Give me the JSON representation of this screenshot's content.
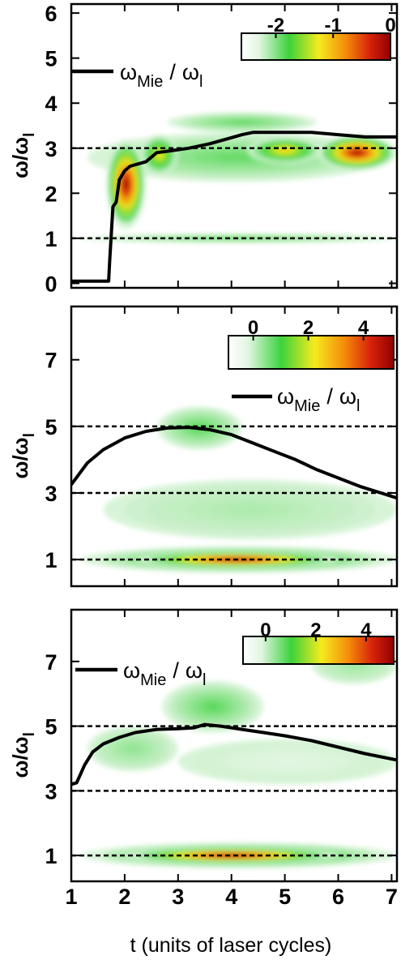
{
  "chart_data": [
    {
      "type": "heatmap",
      "ylabel": "ω/ω_l",
      "xlim": [
        1,
        7.1
      ],
      "ylim": [
        -0.1,
        6.2
      ],
      "ticks": {
        "y": [
          0,
          1,
          2,
          3,
          4,
          5,
          6
        ]
      },
      "colorbar": {
        "ticks": [
          -2,
          -1,
          0
        ],
        "range": [
          -2.6,
          0
        ]
      },
      "dashed_lines": [
        1,
        3
      ],
      "legend": {
        "label_main": "ω",
        "label_sub1": "Mie",
        "label_slash": "/",
        "label_main2": "ω",
        "label_sub2": "l",
        "placement": "top-left"
      },
      "series": [
        {
          "name": "ω_Mie / ω_l",
          "x": [
            1.0,
            1.7,
            1.72,
            1.78,
            1.84,
            1.9,
            2.0,
            2.1,
            2.4,
            2.6,
            2.9,
            3.2,
            3.6,
            3.9,
            4.2,
            4.4,
            5.0,
            5.5,
            6.0,
            6.5,
            7.1
          ],
          "y": [
            0.05,
            0.05,
            0.5,
            1.7,
            1.8,
            2.3,
            2.5,
            2.6,
            2.7,
            2.9,
            2.95,
            3.0,
            3.1,
            3.2,
            3.3,
            3.35,
            3.35,
            3.35,
            3.3,
            3.25,
            3.25
          ]
        }
      ],
      "blobs": [
        {
          "t0": 1.2,
          "t1": 7.1,
          "w0": 0.9,
          "w1": 1.1,
          "base": -1.9
        },
        {
          "t0": 1.3,
          "t1": 6.9,
          "w0": 2.25,
          "w1": 3.35,
          "base": -1.9
        },
        {
          "t0": 1.65,
          "t1": 2.4,
          "w0": 1.2,
          "w1": 3.2,
          "base": -0.1
        },
        {
          "t0": 2.3,
          "t1": 3.0,
          "w0": 2.4,
          "w1": 3.3,
          "base": -1.2
        },
        {
          "t0": 5.6,
          "t1": 7.1,
          "w0": 2.5,
          "w1": 3.3,
          "base": -0.15
        },
        {
          "t0": 4.3,
          "t1": 5.7,
          "w0": 2.65,
          "w1": 3.25,
          "base": -1.1
        },
        {
          "t0": 2.8,
          "t1": 5.6,
          "w0": 3.35,
          "w1": 3.8,
          "base": -1.9
        }
      ]
    },
    {
      "type": "heatmap",
      "ylabel": "ω/ω_l",
      "xlim": [
        1,
        7.1
      ],
      "ylim": [
        0.2,
        8.6
      ],
      "ticks": {
        "y": [
          1,
          3,
          5,
          7
        ]
      },
      "colorbar": {
        "ticks": [
          0,
          2,
          4
        ],
        "range": [
          -0.9,
          5.1
        ]
      },
      "dashed_lines": [
        1,
        3,
        5
      ],
      "legend": {
        "label_main": "ω",
        "label_sub1": "Mie",
        "label_slash": "/",
        "label_main2": "ω",
        "label_sub2": "l",
        "placement": "top-right"
      },
      "series": [
        {
          "name": "ω_Mie / ω_l",
          "x": [
            1.0,
            1.3,
            1.6,
            2.0,
            2.4,
            2.8,
            3.2,
            3.6,
            4.0,
            4.4,
            4.8,
            5.2,
            5.6,
            6.0,
            6.4,
            6.8,
            7.1
          ],
          "y": [
            3.25,
            3.9,
            4.3,
            4.65,
            4.85,
            4.95,
            4.97,
            4.9,
            4.75,
            4.5,
            4.25,
            4.0,
            3.7,
            3.45,
            3.2,
            3.0,
            2.85
          ]
        }
      ],
      "blobs": [
        {
          "t0": 1.2,
          "t1": 7.1,
          "w0": 0.6,
          "w1": 1.4,
          "base": 1.5
        },
        {
          "t0": 2.2,
          "t1": 6.0,
          "w0": 0.75,
          "w1": 1.25,
          "base": 4.7
        },
        {
          "t0": 1.6,
          "t1": 7.1,
          "w0": 1.6,
          "w1": 3.4,
          "base": 0.2
        },
        {
          "t0": 2.6,
          "t1": 4.2,
          "w0": 4.3,
          "w1": 5.6,
          "base": 0.8
        }
      ]
    },
    {
      "type": "heatmap",
      "ylabel": "ω/ω_l",
      "xlabel": "t (units of laser cycles)",
      "xlim": [
        1,
        7.1
      ],
      "ylim": [
        0.2,
        8.6
      ],
      "ticks": {
        "x": [
          1,
          2,
          3,
          4,
          5,
          6,
          7
        ],
        "y": [
          1,
          3,
          5,
          7
        ]
      },
      "colorbar": {
        "ticks": [
          0,
          2,
          4
        ],
        "range": [
          -0.9,
          5.1
        ]
      },
      "dashed_lines": [
        1,
        3,
        5
      ],
      "legend": {
        "label_main": "ω",
        "label_sub1": "Mie",
        "label_slash": "/",
        "label_main2": "ω",
        "label_sub2": "l",
        "placement": "top-left"
      },
      "series": [
        {
          "name": "ω_Mie / ω_l",
          "x": [
            1.0,
            1.1,
            1.25,
            1.4,
            1.6,
            1.9,
            2.2,
            2.6,
            3.0,
            3.3,
            3.5,
            3.8,
            4.2,
            4.6,
            5.0,
            5.5,
            6.0,
            6.5,
            7.1
          ],
          "y": [
            3.2,
            3.25,
            3.8,
            4.2,
            4.45,
            4.65,
            4.8,
            4.9,
            4.92,
            4.95,
            5.05,
            5.0,
            4.9,
            4.8,
            4.7,
            4.55,
            4.35,
            4.15,
            3.95
          ]
        }
      ],
      "blobs": [
        {
          "t0": 1.2,
          "t1": 7.1,
          "w0": 0.6,
          "w1": 1.4,
          "base": 1.5
        },
        {
          "t0": 2.0,
          "t1": 6.0,
          "w0": 0.75,
          "w1": 1.25,
          "base": 4.7
        },
        {
          "t0": 2.7,
          "t1": 4.6,
          "w0": 4.8,
          "w1": 6.4,
          "base": 0.8
        },
        {
          "t0": 5.5,
          "t1": 7.1,
          "w0": 6.3,
          "w1": 7.5,
          "base": 0.3
        },
        {
          "t0": 1.3,
          "t1": 3.0,
          "w0": 3.6,
          "w1": 5.0,
          "base": 0.4
        },
        {
          "t0": 3.0,
          "t1": 7.1,
          "w0": 3.2,
          "w1": 4.6,
          "base": -0.2
        }
      ]
    }
  ],
  "icons": {
    "colorbar-gradient": "colorbar",
    "legend-line": "line-swatch"
  }
}
